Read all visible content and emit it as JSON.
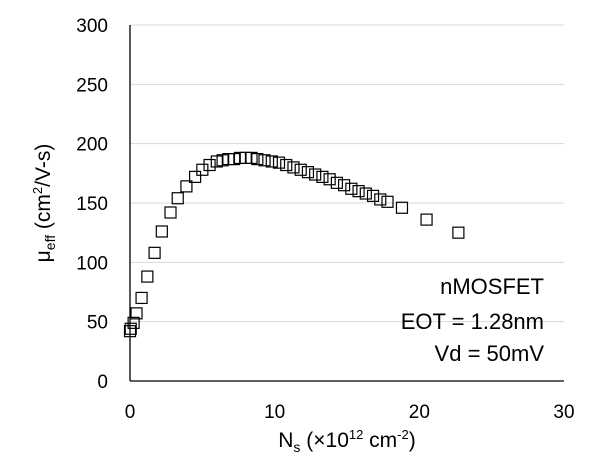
{
  "chart_data": {
    "type": "scatter",
    "xlabel": {
      "main": "N",
      "sub": "s",
      "rest_prefix": " (×10",
      "exp": "12",
      "rest_mid": " cm",
      "exp2": "-2",
      "rest_suffix": ")"
    },
    "ylabel": {
      "main": "μ",
      "sub": "eff",
      "rest_prefix": "  (cm",
      "exp": "2",
      "rest_suffix": "/V-s)"
    },
    "xlim": [
      0,
      30
    ],
    "ylim": [
      0,
      300
    ],
    "x_ticks": [
      0,
      10,
      20,
      30
    ],
    "y_ticks": [
      0,
      50,
      100,
      150,
      200,
      250,
      300
    ],
    "grid": "horizontal",
    "marker": "open-square",
    "marker_color": "#000000",
    "annotations": [
      "nMOSFET",
      "EOT = 1.28nm",
      "Vd = 50mV"
    ],
    "series": [
      {
        "x": [
          0.0,
          0.05,
          0.25,
          0.45,
          0.8,
          1.2,
          1.7,
          2.2,
          2.8,
          3.3,
          3.9,
          4.5,
          5.0,
          5.5,
          6.0,
          6.4,
          6.8,
          7.2,
          7.6,
          8.0,
          8.4,
          8.8,
          9.3,
          9.8,
          10.3,
          10.8,
          11.3,
          11.8,
          12.3,
          12.8,
          13.3,
          13.8,
          14.3,
          14.8,
          15.3,
          15.8,
          16.3,
          16.8,
          17.3,
          17.8,
          18.8,
          20.5,
          22.7
        ],
        "y": [
          42,
          44,
          49,
          57,
          70,
          88,
          108,
          126,
          142,
          154,
          164,
          172,
          178,
          182,
          185,
          186,
          187,
          187,
          188,
          188,
          188,
          187,
          186,
          185,
          184,
          182,
          180,
          178,
          176,
          174,
          172,
          170,
          167,
          165,
          162,
          160,
          158,
          156,
          153,
          151,
          146,
          136,
          125
        ]
      }
    ]
  }
}
